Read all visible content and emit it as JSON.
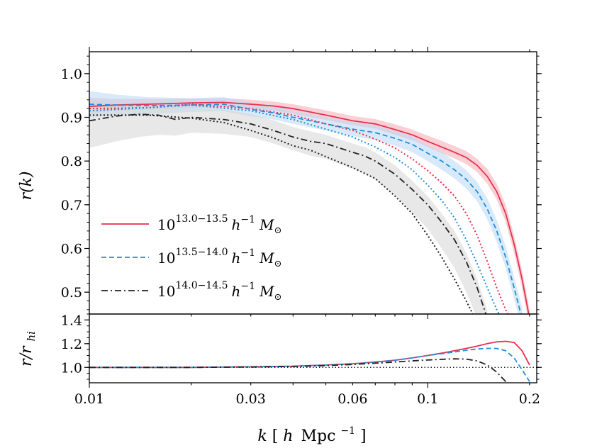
{
  "chart_data": [
    {
      "type": "line",
      "panel": "top",
      "xscale": "log",
      "xlim": [
        0.01,
        0.21
      ],
      "ylim": [
        0.45,
        1.05
      ],
      "ylabel": "r(k)",
      "yticks": [
        "0.5",
        "0.6",
        "0.7",
        "0.8",
        "0.9",
        "1.0"
      ],
      "legend_position": "lower-left",
      "series": [
        {
          "name": "10^{13.0−13.5} h^{−1} M_⊙",
          "legend_base": "10",
          "legend_exp": "13.0−13.5",
          "legend_unit": "h",
          "legend_unit_exp": "−1",
          "legend_mass": "M",
          "legend_mass_sub": "⊙",
          "color": "#e8304c",
          "style": "solid",
          "x": [
            0.01,
            0.012,
            0.015,
            0.02,
            0.025,
            0.03,
            0.035,
            0.04,
            0.05,
            0.06,
            0.07,
            0.08,
            0.09,
            0.1,
            0.11,
            0.12,
            0.13,
            0.14,
            0.15,
            0.16,
            0.17,
            0.18,
            0.19,
            0.2
          ],
          "y": [
            0.925,
            0.928,
            0.93,
            0.933,
            0.934,
            0.93,
            0.926,
            0.92,
            0.905,
            0.892,
            0.885,
            0.872,
            0.86,
            0.845,
            0.832,
            0.82,
            0.808,
            0.79,
            0.765,
            0.73,
            0.68,
            0.61,
            0.53,
            0.44
          ],
          "band": {
            "color": "#f4a9b5",
            "lower": [
              0.91,
              0.915,
              0.918,
              0.922,
              0.923,
              0.92,
              0.915,
              0.908,
              0.894,
              0.882,
              0.874,
              0.86,
              0.848,
              0.832,
              0.818,
              0.806,
              0.793,
              0.775,
              0.748,
              0.712,
              0.66,
              0.59,
              0.51,
              0.42
            ],
            "upper": [
              0.945,
              0.942,
              0.942,
              0.943,
              0.944,
              0.94,
              0.936,
              0.93,
              0.916,
              0.903,
              0.896,
              0.884,
              0.872,
              0.858,
              0.846,
              0.834,
              0.823,
              0.805,
              0.782,
              0.748,
              0.7,
              0.63,
              0.55,
              0.46
            ]
          }
        },
        {
          "name": "10^{13.5−14.0} h^{−1} M_⊙",
          "legend_base": "10",
          "legend_exp": "13.5−14.0",
          "legend_unit": "h",
          "legend_unit_exp": "−1",
          "legend_mass": "M",
          "legend_mass_sub": "⊙",
          "color": "#1e8fe0",
          "style": "dashed",
          "x": [
            0.01,
            0.012,
            0.015,
            0.02,
            0.025,
            0.03,
            0.035,
            0.04,
            0.05,
            0.06,
            0.07,
            0.08,
            0.09,
            0.1,
            0.11,
            0.12,
            0.13,
            0.14,
            0.15,
            0.16,
            0.17,
            0.18,
            0.19
          ],
          "y": [
            0.93,
            0.928,
            0.927,
            0.928,
            0.93,
            0.918,
            0.91,
            0.9,
            0.885,
            0.873,
            0.865,
            0.852,
            0.838,
            0.818,
            0.8,
            0.78,
            0.758,
            0.73,
            0.69,
            0.64,
            0.58,
            0.51,
            0.44
          ],
          "band": {
            "color": "#b8d9f5",
            "lower": [
              0.9,
              0.905,
              0.908,
              0.912,
              0.914,
              0.902,
              0.895,
              0.885,
              0.87,
              0.857,
              0.848,
              0.835,
              0.82,
              0.8,
              0.78,
              0.76,
              0.737,
              0.708,
              0.666,
              0.615,
              0.555,
              0.485,
              0.415
            ],
            "upper": [
              0.96,
              0.952,
              0.946,
              0.944,
              0.946,
              0.934,
              0.925,
              0.915,
              0.9,
              0.889,
              0.882,
              0.869,
              0.856,
              0.836,
              0.82,
              0.8,
              0.779,
              0.752,
              0.714,
              0.665,
              0.605,
              0.535,
              0.465
            ]
          }
        },
        {
          "name": "10^{14.0−14.5} h^{−1} M_⊙",
          "legend_base": "10",
          "legend_exp": "14.0−14.5",
          "legend_unit": "h",
          "legend_unit_exp": "−1",
          "legend_mass": "M",
          "legend_mass_sub": "⊙",
          "color": "#222222",
          "style": "dashdot",
          "x": [
            0.01,
            0.012,
            0.014,
            0.016,
            0.018,
            0.02,
            0.025,
            0.03,
            0.035,
            0.04,
            0.045,
            0.05,
            0.06,
            0.065,
            0.07,
            0.08,
            0.09,
            0.1,
            0.11,
            0.12,
            0.13,
            0.14,
            0.15
          ],
          "y": [
            0.892,
            0.903,
            0.907,
            0.905,
            0.895,
            0.9,
            0.895,
            0.885,
            0.87,
            0.855,
            0.845,
            0.84,
            0.82,
            0.812,
            0.8,
            0.77,
            0.735,
            0.7,
            0.66,
            0.62,
            0.57,
            0.51,
            0.44
          ],
          "band": {
            "color": "#d6d6d6",
            "lower": [
              0.83,
              0.845,
              0.855,
              0.86,
              0.858,
              0.865,
              0.862,
              0.855,
              0.84,
              0.825,
              0.812,
              0.805,
              0.782,
              0.772,
              0.757,
              0.722,
              0.683,
              0.645,
              0.6,
              0.555,
              0.5,
              0.44,
              0.37
            ],
            "upper": [
              0.935,
              0.935,
              0.932,
              0.928,
              0.922,
              0.925,
              0.918,
              0.908,
              0.893,
              0.878,
              0.868,
              0.86,
              0.84,
              0.832,
              0.82,
              0.79,
              0.755,
              0.72,
              0.68,
              0.64,
              0.59,
              0.53,
              0.46
            ]
          }
        },
        {
          "color": "#e8304c",
          "style": "dotted",
          "x": [
            0.01,
            0.015,
            0.02,
            0.03,
            0.04,
            0.05,
            0.06,
            0.07,
            0.08,
            0.09,
            0.1,
            0.11,
            0.12,
            0.13,
            0.14,
            0.15,
            0.16,
            0.17,
            0.18
          ],
          "y": [
            0.92,
            0.922,
            0.93,
            0.92,
            0.905,
            0.885,
            0.87,
            0.85,
            0.83,
            0.805,
            0.778,
            0.75,
            0.72,
            0.68,
            0.63,
            0.57,
            0.51,
            0.46,
            0.42
          ]
        },
        {
          "color": "#1e8fe0",
          "style": "dotted",
          "x": [
            0.01,
            0.015,
            0.02,
            0.03,
            0.04,
            0.05,
            0.06,
            0.07,
            0.08,
            0.09,
            0.1,
            0.11,
            0.12,
            0.13,
            0.14,
            0.15,
            0.16,
            0.17
          ],
          "y": [
            0.915,
            0.922,
            0.928,
            0.915,
            0.895,
            0.873,
            0.855,
            0.832,
            0.808,
            0.78,
            0.745,
            0.71,
            0.67,
            0.62,
            0.565,
            0.51,
            0.46,
            0.42
          ]
        },
        {
          "color": "#222222",
          "style": "dotted",
          "x": [
            0.01,
            0.012,
            0.015,
            0.02,
            0.025,
            0.03,
            0.035,
            0.04,
            0.045,
            0.05,
            0.06,
            0.07,
            0.08,
            0.09,
            0.1,
            0.11,
            0.12,
            0.13,
            0.14
          ],
          "y": [
            0.905,
            0.905,
            0.905,
            0.898,
            0.888,
            0.87,
            0.853,
            0.835,
            0.825,
            0.81,
            0.785,
            0.76,
            0.72,
            0.68,
            0.63,
            0.58,
            0.53,
            0.48,
            0.43
          ]
        }
      ]
    },
    {
      "type": "line",
      "panel": "bottom",
      "xscale": "log",
      "xlim": [
        0.01,
        0.21
      ],
      "ylim": [
        0.87,
        1.45
      ],
      "ylabel": "r/r_hi",
      "ylabel_base": "r/r",
      "ylabel_sub": "hi",
      "xlabel": "k[h Mpc^{−1}]",
      "xlabel_k": "k",
      "xlabel_h": "h",
      "xlabel_unit": "Mpc",
      "xlabel_exp": "−1",
      "xticks": [
        "0.01",
        "0.03",
        "0.06",
        "0.1",
        "0.2"
      ],
      "yticks": [
        "1.0",
        "1.2",
        "1.4"
      ],
      "reference_line": 1.0,
      "series": [
        {
          "color": "#e8304c",
          "style": "solid",
          "x": [
            0.01,
            0.02,
            0.03,
            0.04,
            0.05,
            0.06,
            0.07,
            0.08,
            0.09,
            0.1,
            0.11,
            0.12,
            0.13,
            0.14,
            0.15,
            0.16,
            0.17,
            0.18,
            0.19,
            0.2
          ],
          "y": [
            1.0,
            1.0,
            1.005,
            1.01,
            1.02,
            1.03,
            1.045,
            1.06,
            1.08,
            1.1,
            1.12,
            1.14,
            1.16,
            1.18,
            1.2,
            1.215,
            1.22,
            1.21,
            1.14,
            1.02
          ]
        },
        {
          "color": "#1e8fe0",
          "style": "dashed",
          "x": [
            0.01,
            0.02,
            0.03,
            0.04,
            0.05,
            0.06,
            0.07,
            0.08,
            0.09,
            0.1,
            0.11,
            0.12,
            0.13,
            0.14,
            0.15,
            0.16,
            0.17,
            0.18,
            0.19,
            0.2
          ],
          "y": [
            1.0,
            1.0,
            1.005,
            1.01,
            1.02,
            1.03,
            1.045,
            1.06,
            1.08,
            1.1,
            1.115,
            1.13,
            1.145,
            1.155,
            1.16,
            1.16,
            1.14,
            1.08,
            0.98,
            0.88
          ]
        },
        {
          "color": "#222222",
          "style": "dashdot",
          "x": [
            0.01,
            0.02,
            0.03,
            0.04,
            0.05,
            0.06,
            0.07,
            0.08,
            0.09,
            0.1,
            0.11,
            0.12,
            0.13,
            0.14,
            0.15,
            0.16,
            0.17
          ],
          "y": [
            1.0,
            1.0,
            1.003,
            1.008,
            1.015,
            1.025,
            1.035,
            1.045,
            1.055,
            1.062,
            1.068,
            1.072,
            1.07,
            1.055,
            1.02,
            0.96,
            0.88
          ]
        }
      ]
    }
  ]
}
